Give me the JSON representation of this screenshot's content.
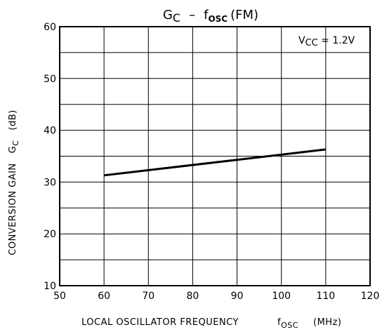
{
  "chart_data": {
    "type": "line",
    "title": {
      "main": "G",
      "main_sub": "C",
      "dash": "–",
      "f": "f",
      "f_sub": "OSC",
      "suffix": "(FM)"
    },
    "xlabel": {
      "text": "LOCAL OSCILLATOR FREQUENCY",
      "symbol": "f",
      "symbol_sub": "OSC",
      "unit": "(MHz)"
    },
    "ylabel": {
      "text": "CONVERSION GAIN",
      "symbol": "G",
      "symbol_sub": "C",
      "unit": "(dB)"
    },
    "annotation": {
      "main": "V",
      "sub": "CC",
      "suffix": " = 1.2V"
    },
    "xlim": [
      50,
      120
    ],
    "ylim": [
      10,
      60
    ],
    "x_ticks": [
      50,
      60,
      70,
      80,
      90,
      100,
      110,
      120
    ],
    "y_ticks": [
      10,
      20,
      30,
      40,
      50,
      60
    ],
    "x_gridlines": [
      60,
      70,
      80,
      90,
      100,
      110
    ],
    "y_gridlines": [
      15,
      20,
      25,
      30,
      35,
      40,
      45,
      50,
      55
    ],
    "grid": true,
    "series": [
      {
        "x": [
          60,
          110
        ],
        "y": [
          31.3,
          36.3
        ],
        "color": "#000000"
      }
    ]
  }
}
